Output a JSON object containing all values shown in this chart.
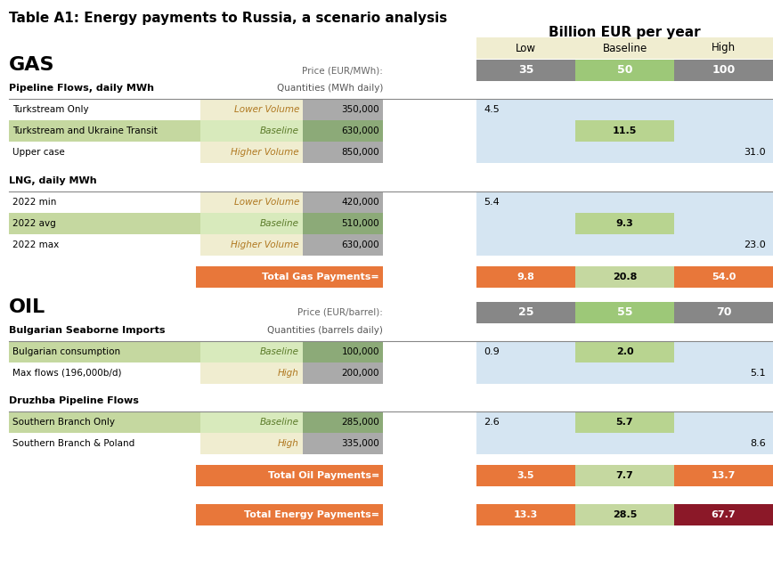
{
  "title": "Table A1: Energy payments to Russia, a scenario analysis",
  "header_right": "Billion EUR per year",
  "col_headers": [
    "Low",
    "Baseline",
    "High"
  ],
  "gas_section_label": "GAS",
  "gas_price_label": "Price (EUR/MWh):",
  "gas_pipeline_label": "Pipeline Flows, daily MWh",
  "gas_qty_label": "Quantities (MWh daily)",
  "gas_rows": [
    {
      "name": "Turkstream Only",
      "scenario": "Lower Volume",
      "qty": "350,000",
      "low": "4.5",
      "baseline": "",
      "high": "",
      "row_bg": "white",
      "val_col": "low"
    },
    {
      "name": "Turkstream and Ukraine Transit",
      "scenario": "Baseline",
      "qty": "630,000",
      "low": "",
      "baseline": "11.5",
      "high": "",
      "row_bg": "green",
      "val_col": "baseline"
    },
    {
      "name": "Upper case",
      "scenario": "Higher Volume",
      "qty": "850,000",
      "low": "",
      "baseline": "",
      "high": "31.0",
      "row_bg": "white",
      "val_col": "high"
    }
  ],
  "gas_lng_label": "LNG, daily MWh",
  "gas_lng_rows": [
    {
      "name": "2022 min",
      "scenario": "Lower Volume",
      "qty": "420,000",
      "low": "5.4",
      "baseline": "",
      "high": "",
      "row_bg": "white",
      "val_col": "low"
    },
    {
      "name": "2022 avg",
      "scenario": "Baseline",
      "qty": "510,000",
      "low": "",
      "baseline": "9.3",
      "high": "",
      "row_bg": "green",
      "val_col": "baseline"
    },
    {
      "name": "2022 max",
      "scenario": "Higher Volume",
      "qty": "630,000",
      "low": "",
      "baseline": "",
      "high": "23.0",
      "row_bg": "white",
      "val_col": "high"
    }
  ],
  "gas_total_label": "Total Gas Payments=",
  "gas_total": [
    "9.8",
    "20.8",
    "54.0"
  ],
  "oil_section_label": "OIL",
  "oil_price_label": "Price (EUR/barrel):",
  "oil_seaborne_label": "Bulgarian Seaborne Imports",
  "oil_seaborne_qty_label": "Quantities (barrels daily)",
  "oil_seaborne_rows": [
    {
      "name": "Bulgarian consumption",
      "scenario": "Baseline",
      "qty": "100,000",
      "low": "0.9",
      "baseline": "2.0",
      "high": "",
      "row_bg": "green",
      "val_col": "baseline"
    },
    {
      "name": "Max flows (196,000b/d)",
      "scenario": "High",
      "qty": "200,000",
      "low": "",
      "baseline": "",
      "high": "5.1",
      "row_bg": "white",
      "val_col": "high"
    }
  ],
  "oil_druzhba_label": "Druzhba Pipeline Flows",
  "oil_druzhba_rows": [
    {
      "name": "Southern Branch Only",
      "scenario": "Baseline",
      "qty": "285,000",
      "low": "2.6",
      "baseline": "5.7",
      "high": "",
      "row_bg": "green",
      "val_col": "baseline"
    },
    {
      "name": "Southern Branch & Poland",
      "scenario": "High",
      "qty": "335,000",
      "low": "",
      "baseline": "",
      "high": "8.6",
      "row_bg": "white",
      "val_col": "high"
    }
  ],
  "oil_total_label": "Total Oil Payments=",
  "oil_total": [
    "3.5",
    "7.7",
    "13.7"
  ],
  "total_energy_label": "Total Energy Payments=",
  "total_energy": [
    "13.3",
    "28.5",
    "67.7"
  ],
  "colors": {
    "bg_green_row": "#C5D8A0",
    "bg_green_cell": "#B8D490",
    "bg_tan": "#F0EDD0",
    "bg_blue": "#D5E5F2",
    "bg_orange": "#E8773A",
    "bg_dark_red": "#8B1828",
    "bg_gray": "#878787",
    "bg_green_price": "#9DC878",
    "price_low_bg": "#878787",
    "price_base_bg": "#9DC878",
    "price_high_bg": "#878787"
  }
}
